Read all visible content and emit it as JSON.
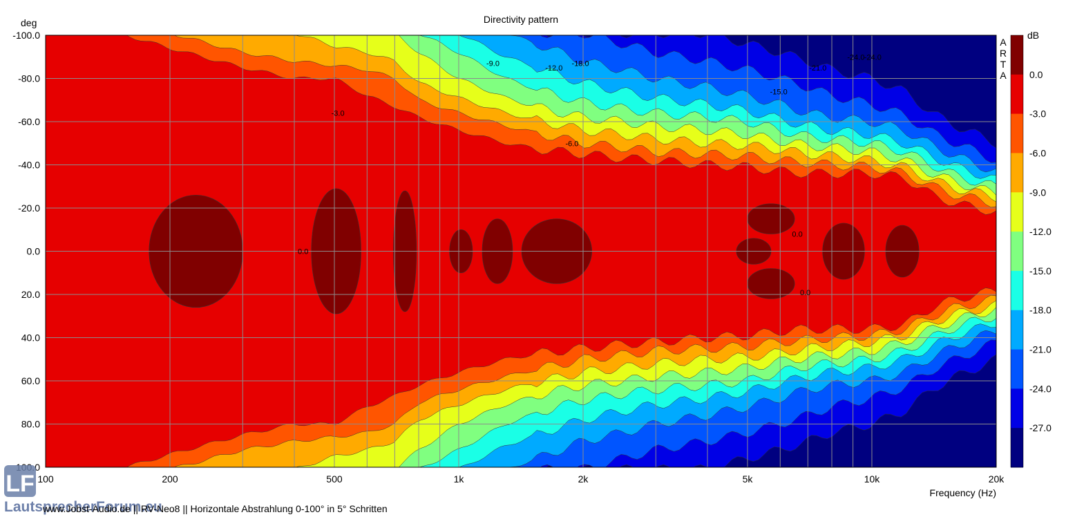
{
  "chart_data": {
    "type": "heatmap",
    "title": "Directivity pattern",
    "xlabel": "Frequency (Hz)",
    "ylabel": "deg",
    "x_scale": "log",
    "xlim": [
      100,
      20000
    ],
    "ylim": [
      -100,
      100
    ],
    "x_ticks": [
      {
        "value": 100,
        "label": "100"
      },
      {
        "value": 200,
        "label": "200"
      },
      {
        "value": 500,
        "label": "500"
      },
      {
        "value": 1000,
        "label": "1k"
      },
      {
        "value": 2000,
        "label": "2k"
      },
      {
        "value": 5000,
        "label": "5k"
      },
      {
        "value": 10000,
        "label": "10k"
      },
      {
        "value": 20000,
        "label": "20k"
      }
    ],
    "y_ticks": [
      {
        "value": -100,
        "label": "-100.0"
      },
      {
        "value": -80,
        "label": "-80.0"
      },
      {
        "value": -60,
        "label": "-60.0"
      },
      {
        "value": -40,
        "label": "-40.0"
      },
      {
        "value": -20,
        "label": "-20.0"
      },
      {
        "value": 0,
        "label": "0.0"
      },
      {
        "value": 20,
        "label": "20.0"
      },
      {
        "value": 40,
        "label": "40.0"
      },
      {
        "value": 60,
        "label": "60.0"
      },
      {
        "value": 80,
        "label": "80.0"
      },
      {
        "value": 100,
        "label": "100.0"
      }
    ],
    "grid": true,
    "colorbar": {
      "unit": "dB",
      "levels": [
        "0.0",
        "-3.0",
        "-6.0",
        "-9.0",
        "-12.0",
        "-15.0",
        "-18.0",
        "-21.0",
        "-24.0",
        "-27.0"
      ],
      "colors": [
        "#800000",
        "#e60000",
        "#ff5500",
        "#ffaa00",
        "#e6ff1a",
        "#80ff80",
        "#1affe6",
        "#00aaff",
        "#0055ff",
        "#0000e6",
        "#000080"
      ]
    },
    "boundaries_deg": {
      "frequencies": [
        100,
        150,
        200,
        300,
        400,
        500,
        600,
        700,
        800,
        1000,
        1300,
        1600,
        2000,
        2500,
        3000,
        4000,
        5000,
        6000,
        7000,
        8000,
        10000,
        12000,
        14000,
        16000,
        18000,
        20000
      ],
      "minus_3dB": [
        101,
        101,
        94,
        85,
        80,
        80,
        72,
        67,
        62,
        56,
        50,
        47,
        45,
        43,
        42,
        40,
        39,
        37,
        36,
        36,
        36,
        34,
        26,
        22,
        20,
        18
      ],
      "minus_6dB": [
        101,
        101,
        101,
        92,
        88,
        86,
        84,
        80,
        70,
        64,
        58,
        54,
        50,
        48,
        46,
        45,
        44,
        42,
        41,
        40,
        39,
        36,
        30,
        26,
        24,
        22
      ],
      "minus_9dB": [
        101,
        101,
        101,
        101,
        101,
        95,
        92,
        88,
        78,
        71,
        64,
        60,
        56,
        54,
        52,
        50,
        49,
        47,
        45,
        44,
        42,
        39,
        33,
        29,
        27,
        25
      ],
      "minus_12dB": [
        101,
        101,
        101,
        101,
        101,
        101,
        101,
        101,
        92,
        80,
        71,
        66,
        62,
        60,
        58,
        56,
        54,
        51,
        49,
        48,
        46,
        42,
        36,
        32,
        29,
        27
      ],
      "minus_15dB": [
        101,
        101,
        101,
        101,
        101,
        101,
        101,
        101,
        101,
        92,
        80,
        74,
        69,
        66,
        64,
        62,
        60,
        56,
        53,
        52,
        50,
        46,
        40,
        35,
        32,
        30
      ],
      "minus_18dB": [
        101,
        101,
        101,
        101,
        101,
        101,
        101,
        101,
        101,
        101,
        90,
        84,
        78,
        74,
        71,
        68,
        65,
        61,
        58,
        56,
        54,
        50,
        44,
        39,
        36,
        33
      ],
      "minus_21dB": [
        101,
        101,
        101,
        101,
        101,
        101,
        101,
        101,
        101,
        101,
        101,
        95,
        88,
        84,
        80,
        76,
        72,
        68,
        64,
        62,
        60,
        56,
        49,
        44,
        40,
        37
      ],
      "minus_24dB": [
        101,
        101,
        101,
        101,
        101,
        101,
        101,
        101,
        101,
        101,
        101,
        101,
        101,
        96,
        92,
        88,
        84,
        80,
        76,
        72,
        68,
        63,
        55,
        50,
        46,
        42
      ],
      "minus_27dB": [
        101,
        101,
        101,
        101,
        101,
        101,
        101,
        101,
        101,
        101,
        101,
        101,
        101,
        101,
        101,
        101,
        96,
        92,
        88,
        84,
        80,
        74,
        64,
        58,
        54,
        50
      ]
    },
    "zero_dB_islands": [
      {
        "f_low": 178,
        "f_high": 300,
        "half_width_deg": 26,
        "center_deg": 0
      },
      {
        "f_low": 440,
        "f_high": 580,
        "half_width_deg": 29,
        "center_deg": 0
      },
      {
        "f_low": 695,
        "f_high": 790,
        "half_width_deg": 28,
        "center_deg": 0
      },
      {
        "f_low": 950,
        "f_high": 1080,
        "half_width_deg": 10,
        "center_deg": 0
      },
      {
        "f_low": 1140,
        "f_high": 1350,
        "half_width_deg": 15,
        "center_deg": 0
      },
      {
        "f_low": 1420,
        "f_high": 2100,
        "half_width_deg": 15,
        "center_deg": 0
      },
      {
        "f_low": 4700,
        "f_high": 5700,
        "half_width_deg": 6,
        "center_deg": 0
      },
      {
        "f_low": 5000,
        "f_high": 6500,
        "half_width_deg": 7,
        "center_deg": -15
      },
      {
        "f_low": 5000,
        "f_high": 6500,
        "half_width_deg": 7,
        "center_deg": 15
      },
      {
        "f_low": 7600,
        "f_high": 9600,
        "half_width_deg": 13,
        "center_deg": 0
      },
      {
        "f_low": 10800,
        "f_high": 13000,
        "half_width_deg": 12,
        "center_deg": 0
      }
    ],
    "contour_labels": [
      {
        "text": "-3.0",
        "f": 510,
        "deg": -64
      },
      {
        "text": "0.0",
        "f": 420,
        "deg": 0
      },
      {
        "text": "-9.0",
        "f": 1210,
        "deg": -87
      },
      {
        "text": "-12.0",
        "f": 1700,
        "deg": -85
      },
      {
        "text": "-18.0",
        "f": 1970,
        "deg": -87
      },
      {
        "text": "-6.0",
        "f": 1880,
        "deg": -50
      },
      {
        "text": "-15.0",
        "f": 5950,
        "deg": -74
      },
      {
        "text": "-21.0",
        "f": 7400,
        "deg": -85
      },
      {
        "text": "-24.0",
        "f": 9150,
        "deg": -90
      },
      {
        "text": "-24.0",
        "f": 10050,
        "deg": -90
      },
      {
        "text": "0.0",
        "f": 6600,
        "deg": -8
      },
      {
        "text": "0.0",
        "f": 6900,
        "deg": 19
      }
    ]
  },
  "watermark": {
    "logo_letters": "LF",
    "site_name": "LautsprecherForum.eu"
  },
  "arta_label": "ARTA",
  "footer_caption": "www.Jobst-Audio.de  ||  RV-Neo8  ||  Horizontale Abstrahlung 0-100° in 5° Schritten"
}
